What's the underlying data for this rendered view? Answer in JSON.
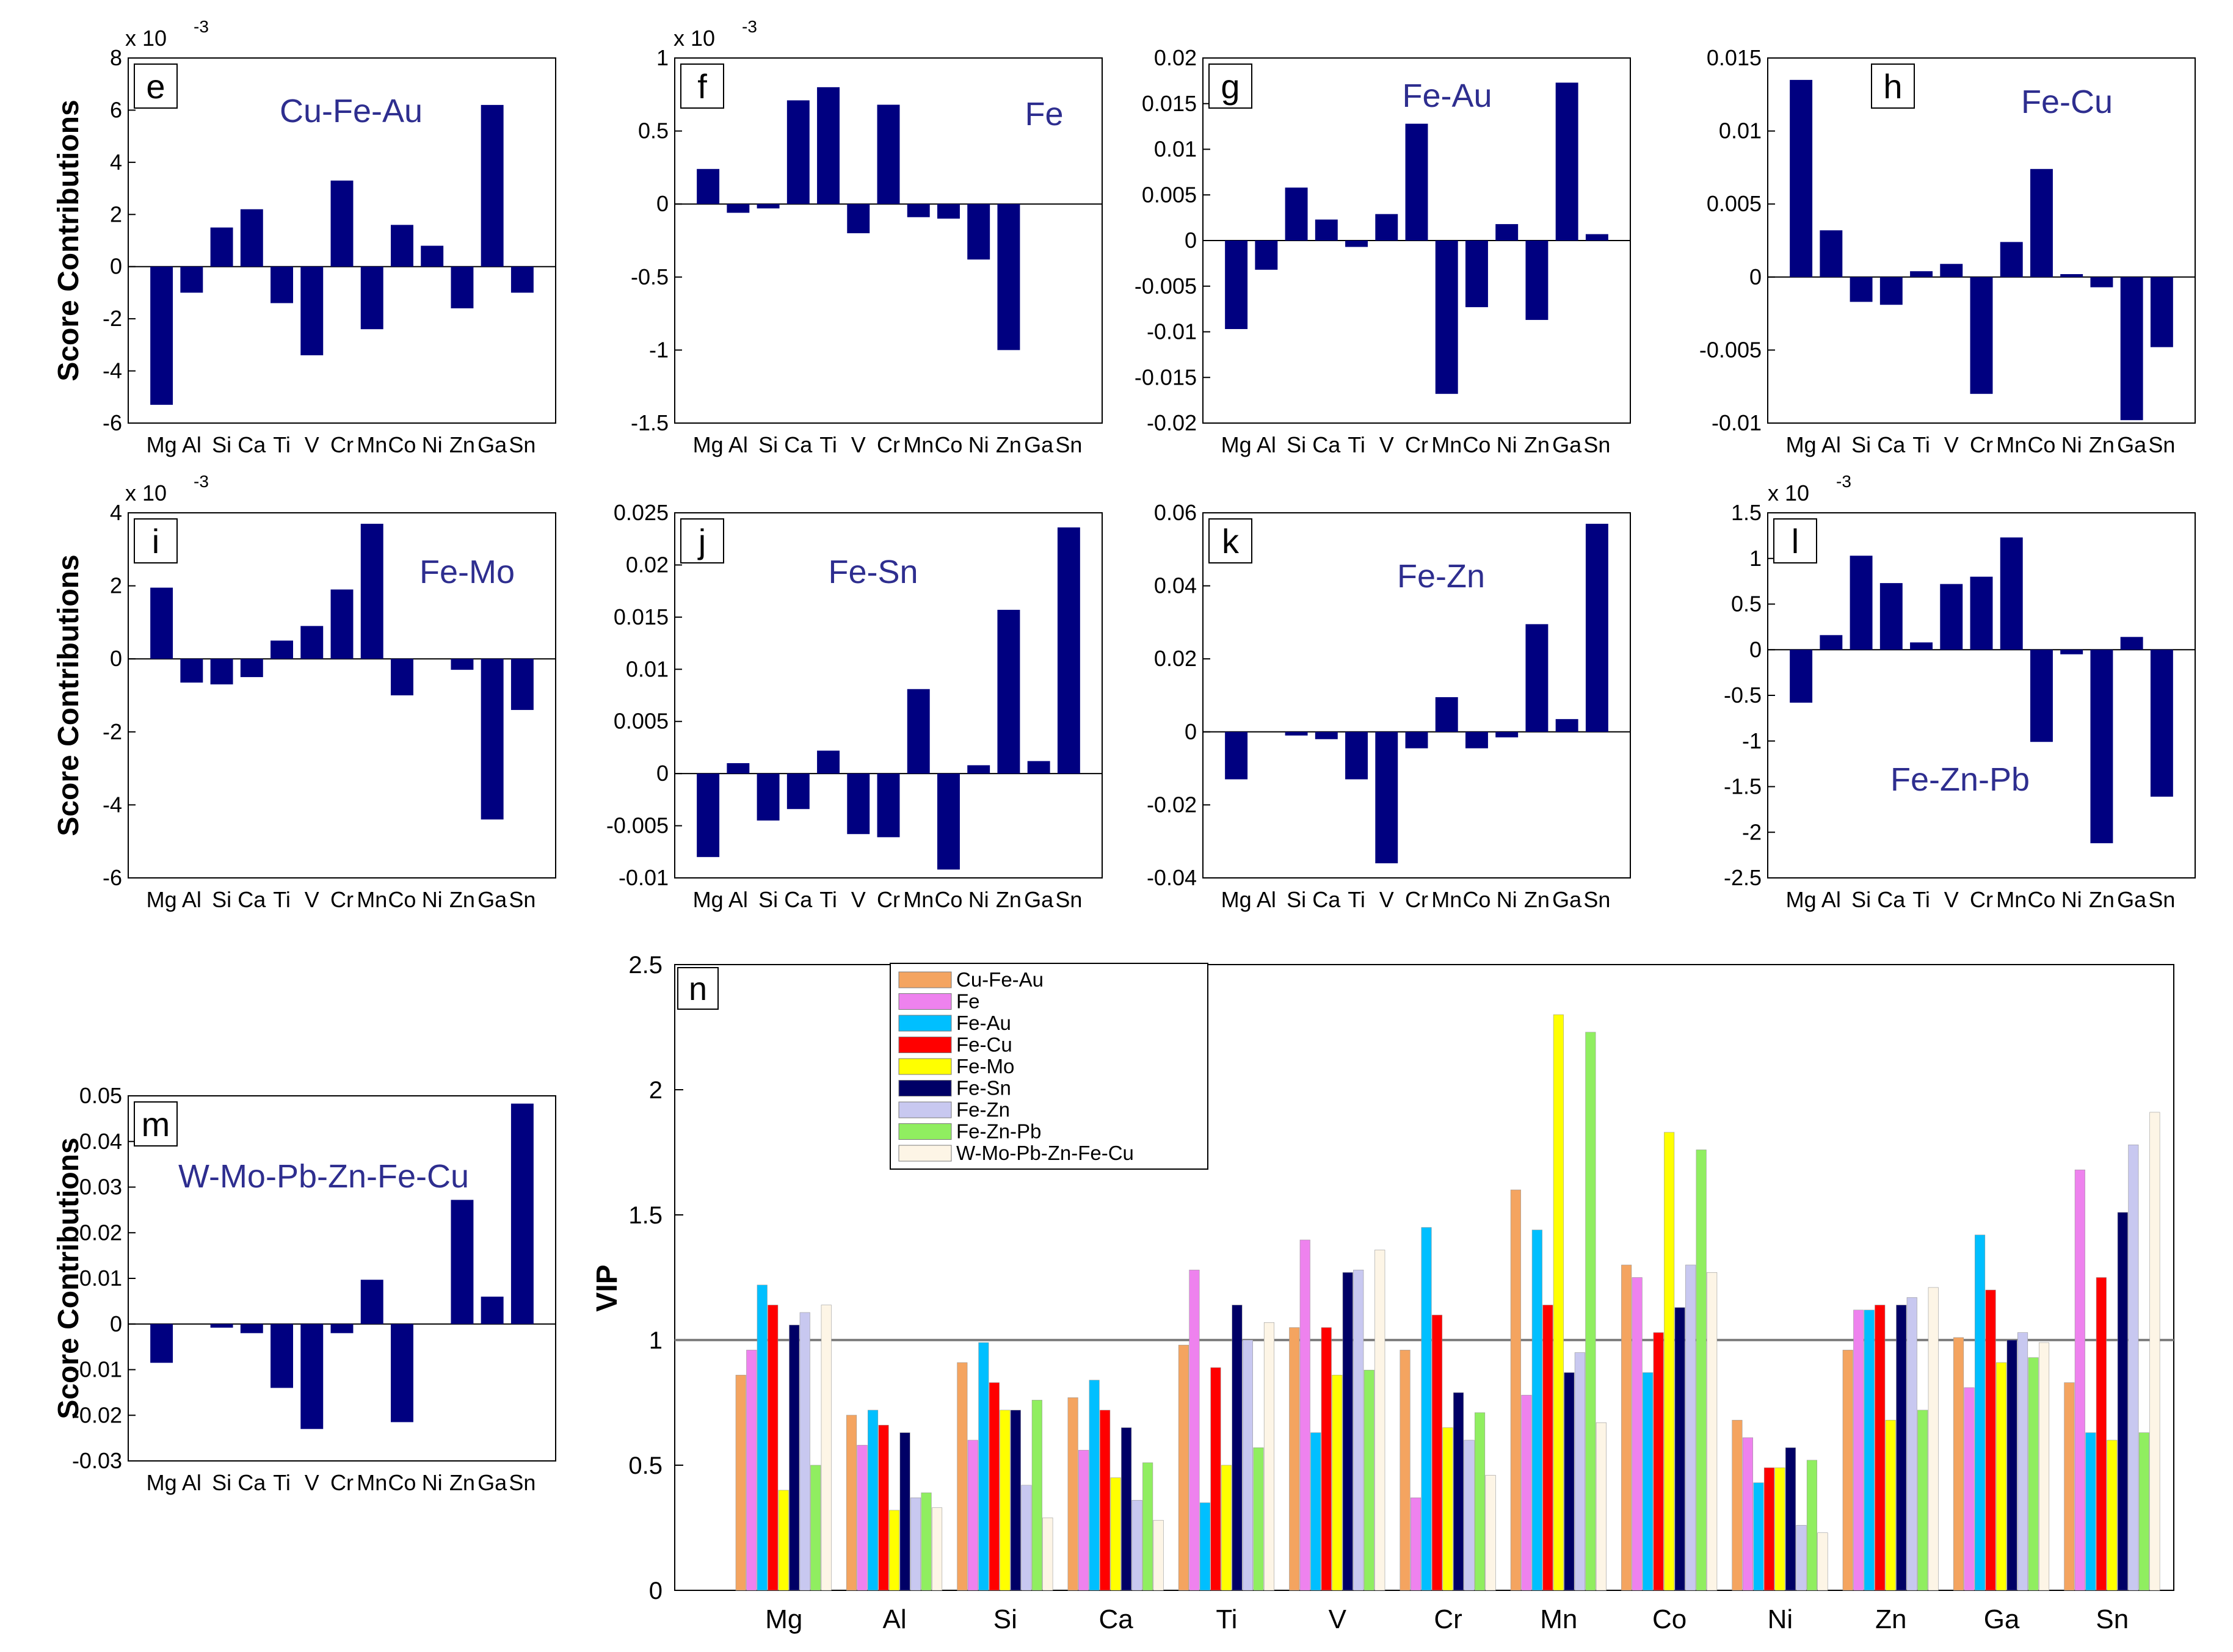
{
  "colors": {
    "bar": "#000080",
    "title": "#2e2e8f",
    "axis": "#000000",
    "ref_line": "#808080"
  },
  "chart_data": [
    {
      "id": "e",
      "type": "bar",
      "panel_label": "e",
      "title": "Cu-Fe-Au",
      "ylabel": "Score Contributions",
      "exponent_label": "x 10",
      "exponent": "-3",
      "categories": [
        "Mg",
        "Al",
        "Si",
        "Ca",
        "Ti",
        "V",
        "Cr",
        "Mn",
        "Co",
        "Ni",
        "Zn",
        "Ga",
        "Sn"
      ],
      "values": [
        -5.3,
        -1.0,
        1.5,
        2.2,
        -1.4,
        -3.4,
        3.3,
        -2.4,
        1.6,
        0.8,
        -1.6,
        6.2,
        -1.0
      ],
      "ylim": [
        -6,
        8
      ],
      "yticks": [
        {
          "v": 8,
          "t": "8"
        },
        {
          "v": 6,
          "t": "6"
        },
        {
          "v": 4,
          "t": "4"
        },
        {
          "v": 2,
          "t": "2"
        },
        {
          "v": 0,
          "t": "0"
        },
        {
          "v": -2,
          "t": "-2"
        },
        {
          "v": -4,
          "t": "-4"
        },
        {
          "v": -6,
          "t": "-6"
        }
      ]
    },
    {
      "id": "f",
      "type": "bar",
      "panel_label": "f",
      "title": "Fe",
      "ylabel": "",
      "exponent_label": "x 10",
      "exponent": "-3",
      "categories": [
        "Mg",
        "Al",
        "Si",
        "Ca",
        "Ti",
        "V",
        "Cr",
        "Mn",
        "Co",
        "Ni",
        "Zn",
        "Ga",
        "Sn"
      ],
      "values": [
        0.24,
        -0.06,
        -0.03,
        0.71,
        0.8,
        -0.2,
        0.68,
        -0.09,
        -0.1,
        -0.38,
        -1.0,
        0,
        0
      ],
      "values_note": "",
      "ylim": [
        -1.5,
        1
      ],
      "yticks": [
        {
          "v": 1,
          "t": "1"
        },
        {
          "v": 0.5,
          "t": "0.5"
        },
        {
          "v": 0,
          "t": "0"
        },
        {
          "v": -0.5,
          "t": "-0.5"
        },
        {
          "v": -1,
          "t": "-1"
        },
        {
          "v": -1.5,
          "t": "-1.5"
        }
      ]
    },
    {
      "id": "g",
      "type": "bar",
      "panel_label": "g",
      "title": "Fe-Au",
      "ylabel": "",
      "exponent_label": "",
      "exponent": "",
      "categories": [
        "Mg",
        "Al",
        "Si",
        "Ca",
        "Ti",
        "V",
        "Cr",
        "Mn",
        "Co",
        "Ni",
        "Zn",
        "Ga",
        "Sn"
      ],
      "values": [
        -0.0097,
        -0.0032,
        0.0058,
        0.0023,
        -0.0007,
        0.0029,
        0.0128,
        -0.0168,
        -0.0073,
        0.0018,
        -0.0087,
        0.0173,
        0.0007
      ],
      "ylim": [
        -0.02,
        0.02
      ],
      "yticks": [
        {
          "v": 0.02,
          "t": "0.02"
        },
        {
          "v": 0.015,
          "t": "0.015"
        },
        {
          "v": 0.01,
          "t": "0.01"
        },
        {
          "v": 0.005,
          "t": "0.005"
        },
        {
          "v": 0,
          "t": "0"
        },
        {
          "v": -0.005,
          "t": "-0.005"
        },
        {
          "v": -0.01,
          "t": "-0.01"
        },
        {
          "v": -0.015,
          "t": "-0.015"
        },
        {
          "v": -0.02,
          "t": "-0.02"
        }
      ]
    },
    {
      "id": "h",
      "type": "bar",
      "panel_label": "h",
      "title": "Fe-Cu",
      "ylabel": "",
      "exponent_label": "",
      "exponent": "",
      "categories": [
        "Mg",
        "Al",
        "Si",
        "Ca",
        "Ti",
        "V",
        "Cr",
        "Mn",
        "Co",
        "Ni",
        "Zn",
        "Ga",
        "Sn"
      ],
      "values": [
        0.0135,
        0.0032,
        -0.0017,
        -0.0019,
        0.0004,
        0.0009,
        -0.008,
        0.0024,
        0.0074,
        0.0002,
        -0.0007,
        -0.0098,
        -0.0048
      ],
      "ylim": [
        -0.01,
        0.015
      ],
      "yticks": [
        {
          "v": 0.015,
          "t": "0.015"
        },
        {
          "v": 0.01,
          "t": "0.01"
        },
        {
          "v": 0.005,
          "t": "0.005"
        },
        {
          "v": 0,
          "t": "0"
        },
        {
          "v": -0.005,
          "t": "-0.005"
        },
        {
          "v": -0.01,
          "t": "-0.01"
        }
      ]
    },
    {
      "id": "i",
      "type": "bar",
      "panel_label": "i",
      "title": "Fe-Mo",
      "ylabel": "Score Contributions",
      "exponent_label": "x 10",
      "exponent": "-3",
      "categories": [
        "Mg",
        "Al",
        "Si",
        "Ca",
        "Ti",
        "V",
        "Cr",
        "Mn",
        "Co",
        "Ni",
        "Zn",
        "Ga",
        "Sn"
      ],
      "values": [
        1.95,
        -0.65,
        -0.7,
        -0.5,
        0.5,
        0.9,
        1.9,
        3.7,
        -1.0,
        0,
        -0.3,
        -4.4,
        -1.4
      ],
      "ylim": [
        -6,
        4
      ],
      "yticks": [
        {
          "v": 4,
          "t": "4"
        },
        {
          "v": 2,
          "t": "2"
        },
        {
          "v": 0,
          "t": "0"
        },
        {
          "v": -2,
          "t": "-2"
        },
        {
          "v": -4,
          "t": "-4"
        },
        {
          "v": -6,
          "t": "-6"
        }
      ]
    },
    {
      "id": "j",
      "type": "bar",
      "panel_label": "j",
      "title": "Fe-Sn",
      "ylabel": "",
      "exponent_label": "",
      "exponent": "",
      "categories": [
        "Mg",
        "Al",
        "Si",
        "Ca",
        "Ti",
        "V",
        "Cr",
        "Mn",
        "Co",
        "Ni",
        "Zn",
        "Ga",
        "Sn"
      ],
      "values": [
        -0.008,
        0.001,
        -0.0045,
        -0.0034,
        0.0022,
        -0.0058,
        -0.0061,
        0.0081,
        -0.0092,
        0.0008,
        0.0157,
        0.0012,
        0.0236
      ],
      "ylim": [
        -0.01,
        0.025
      ],
      "yticks": [
        {
          "v": 0.025,
          "t": "0.025"
        },
        {
          "v": 0.02,
          "t": "0.02"
        },
        {
          "v": 0.015,
          "t": "0.015"
        },
        {
          "v": 0.01,
          "t": "0.01"
        },
        {
          "v": 0.005,
          "t": "0.005"
        },
        {
          "v": 0,
          "t": "0"
        },
        {
          "v": -0.005,
          "t": "-0.005"
        },
        {
          "v": -0.01,
          "t": "-0.01"
        }
      ]
    },
    {
      "id": "k",
      "type": "bar",
      "panel_label": "k",
      "title": "Fe-Zn",
      "ylabel": "",
      "exponent_label": "",
      "exponent": "",
      "categories": [
        "Mg",
        "Al",
        "Si",
        "Ca",
        "Ti",
        "V",
        "Cr",
        "Mn",
        "Co",
        "Ni",
        "Zn",
        "Ga",
        "Sn"
      ],
      "values": [
        -0.013,
        0,
        -0.001,
        -0.002,
        -0.013,
        -0.036,
        -0.0045,
        0.0095,
        -0.0045,
        -0.0015,
        0.0295,
        0.0035,
        0.057
      ],
      "ylim": [
        -0.04,
        0.06
      ],
      "yticks": [
        {
          "v": 0.06,
          "t": "0.06"
        },
        {
          "v": 0.04,
          "t": "0.04"
        },
        {
          "v": 0.02,
          "t": "0.02"
        },
        {
          "v": 0,
          "t": "0"
        },
        {
          "v": -0.02,
          "t": "-0.02"
        },
        {
          "v": -0.04,
          "t": "-0.04"
        }
      ]
    },
    {
      "id": "l",
      "type": "bar",
      "panel_label": "l",
      "title": "Fe-Zn-Pb",
      "ylabel": "",
      "exponent_label": "x 10",
      "exponent": "-3",
      "categories": [
        "Mg",
        "Al",
        "Si",
        "Ca",
        "Ti",
        "V",
        "Cr",
        "Mn",
        "Co",
        "Ni",
        "Zn",
        "Ga",
        "Sn"
      ],
      "values": [
        -0.58,
        0.16,
        1.03,
        0.73,
        0.08,
        0.72,
        0.8,
        1.23,
        -1.01,
        -0.05,
        -2.12,
        0.14,
        -1.61
      ],
      "ylim": [
        -2.5,
        1.5
      ],
      "yticks": [
        {
          "v": 1.5,
          "t": "1.5"
        },
        {
          "v": 1,
          "t": "1"
        },
        {
          "v": 0.5,
          "t": "0.5"
        },
        {
          "v": 0,
          "t": "0"
        },
        {
          "v": -0.5,
          "t": "-0.5"
        },
        {
          "v": -1,
          "t": "-1"
        },
        {
          "v": -1.5,
          "t": "-1.5"
        },
        {
          "v": -2,
          "t": "-2"
        },
        {
          "v": -2.5,
          "t": "-2.5"
        }
      ]
    },
    {
      "id": "m",
      "type": "bar",
      "panel_label": "m",
      "title": "W-Mo-Pb-Zn-Fe-Cu",
      "ylabel": "Score Contributions",
      "exponent_label": "",
      "exponent": "",
      "categories": [
        "Mg",
        "Al",
        "Si",
        "Ca",
        "Ti",
        "V",
        "Cr",
        "Mn",
        "Co",
        "Ni",
        "Zn",
        "Ga",
        "Sn"
      ],
      "values": [
        -0.0085,
        0,
        -0.0008,
        -0.002,
        -0.014,
        -0.023,
        -0.002,
        0.0097,
        -0.0215,
        0,
        0.0272,
        0.006,
        0.0483
      ],
      "ylim": [
        -0.03,
        0.05
      ],
      "yticks": [
        {
          "v": 0.05,
          "t": "0.05"
        },
        {
          "v": 0.04,
          "t": "0.04"
        },
        {
          "v": 0.03,
          "t": "0.03"
        },
        {
          "v": 0.02,
          "t": "0.02"
        },
        {
          "v": 0.01,
          "t": "0.01"
        },
        {
          "v": 0,
          "t": "0"
        },
        {
          "v": -0.01,
          "t": "-0.01"
        },
        {
          "v": -0.02,
          "t": "-0.02"
        },
        {
          "v": -0.03,
          "t": "-0.03"
        }
      ]
    },
    {
      "id": "n",
      "type": "bar",
      "panel_label": "n",
      "title": "",
      "ylabel": "VIP",
      "categories": [
        "Mg",
        "Al",
        "Si",
        "Ca",
        "Ti",
        "V",
        "Cr",
        "Mn",
        "Co",
        "Ni",
        "Zn",
        "Ga",
        "Sn"
      ],
      "ylim": [
        0,
        2.5
      ],
      "reference_line": 1,
      "yticks": [
        {
          "v": 2.5,
          "t": "2.5"
        },
        {
          "v": 2,
          "t": "2"
        },
        {
          "v": 1.5,
          "t": "1.5"
        },
        {
          "v": 1,
          "t": "1"
        },
        {
          "v": 0.5,
          "t": "0.5"
        },
        {
          "v": 0,
          "t": "0"
        }
      ],
      "series": [
        {
          "name": "Cu-Fe-Au",
          "color": "#f4a460",
          "values": [
            0.86,
            0.7,
            0.91,
            0.77,
            0.98,
            1.05,
            0.96,
            1.6,
            1.3,
            0.68,
            0.96,
            1.01,
            0.83
          ]
        },
        {
          "name": "Fe",
          "color": "#ee82ee",
          "values": [
            0.96,
            0.58,
            0.6,
            0.56,
            1.28,
            1.4,
            0.37,
            0.78,
            1.25,
            0.61,
            1.12,
            0.81,
            1.68
          ]
        },
        {
          "name": "Fe-Au",
          "color": "#00bfff",
          "values": [
            1.22,
            0.72,
            0.99,
            0.84,
            0.35,
            0.63,
            1.45,
            1.44,
            0.87,
            0.43,
            1.12,
            1.42,
            0.63
          ]
        },
        {
          "name": "Fe-Cu",
          "color": "#ff0000",
          "values": [
            1.14,
            0.66,
            0.83,
            0.72,
            0.89,
            1.05,
            1.1,
            1.14,
            1.03,
            0.49,
            1.14,
            1.2,
            1.25
          ]
        },
        {
          "name": "Fe-Mo",
          "color": "#ffff00",
          "values": [
            0.4,
            0.32,
            0.72,
            0.45,
            0.5,
            0.86,
            0.65,
            2.3,
            1.83,
            0.49,
            0.68,
            0.91,
            0.6
          ]
        },
        {
          "name": "Fe-Sn",
          "color": "#000066",
          "values": [
            1.06,
            0.63,
            0.72,
            0.65,
            1.14,
            1.27,
            0.79,
            0.87,
            1.13,
            0.57,
            1.14,
            1.0,
            1.51
          ]
        },
        {
          "name": "Fe-Zn",
          "color": "#c8c8f0",
          "values": [
            1.11,
            0.37,
            0.42,
            0.36,
            1.0,
            1.28,
            0.6,
            0.95,
            1.3,
            0.26,
            1.17,
            1.03,
            1.78
          ]
        },
        {
          "name": "Fe-Zn-Pb",
          "color": "#90ee60",
          "values": [
            0.5,
            0.39,
            0.76,
            0.51,
            0.57,
            0.88,
            0.71,
            2.23,
            1.76,
            0.52,
            0.72,
            0.93,
            0.63
          ]
        },
        {
          "name": "W-Mo-Pb-Zn-Fe-Cu",
          "color": "#fdf5e6",
          "values": [
            1.14,
            0.33,
            0.29,
            0.28,
            1.07,
            1.36,
            0.46,
            0.67,
            1.27,
            0.23,
            1.21,
            0.99,
            1.91
          ]
        }
      ]
    }
  ]
}
